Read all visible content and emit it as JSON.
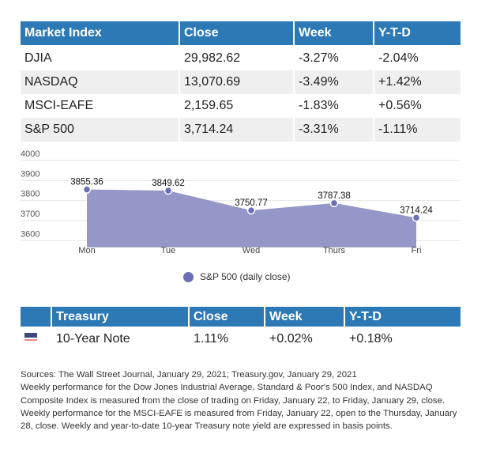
{
  "market_table": {
    "headers": [
      "Market Index",
      "Close",
      "Week",
      "Y-T-D"
    ],
    "rows": [
      [
        "DJIA",
        "29,982.62",
        "-3.27%",
        "-2.04%"
      ],
      [
        "NASDAQ",
        "13,070.69",
        "-3.49%",
        "+1.42%"
      ],
      [
        "MSCI-EAFE",
        "2,159.65",
        "-1.83%",
        "+0.56%"
      ],
      [
        "S&P 500",
        "3,714.24",
        "-3.31%",
        "-1.11%"
      ]
    ]
  },
  "chart_data": {
    "type": "area",
    "categories": [
      "Mon",
      "Tue",
      "Wed",
      "Thurs",
      "Fri"
    ],
    "series": [
      {
        "name": "S&P 500 (daily close)",
        "values": [
          3855.36,
          3849.62,
          3750.77,
          3787.38,
          3714.24
        ],
        "labels": [
          "3855.36",
          "3849.62",
          "3750.77",
          "3787.38",
          "3714.24"
        ]
      }
    ],
    "yticks": [
      "4000",
      "3900",
      "3800",
      "3700",
      "3600"
    ],
    "ylim": [
      3570,
      4000
    ],
    "grid": true,
    "legend": "bottom-center",
    "colors": {
      "fill": "#9497c7",
      "point": "#6b6fb5"
    }
  },
  "treasury_table": {
    "headers": [
      "",
      "Treasury",
      "Close",
      "Week",
      "Y-T-D"
    ],
    "row": {
      "flag": "us-flag-icon",
      "name": "10-Year Note",
      "close": "1.11%",
      "week": "+0.02%",
      "ytd": "+0.18%"
    }
  },
  "footnote": {
    "lines": [
      "Sources: The Wall Street Journal, January 29, 2021; Treasury.gov, January 29, 2021",
      "Weekly performance for the Dow Jones Industrial Average, Standard & Poor's 500 Index, and NASDAQ",
      "Composite Index is measured from the close of trading on Friday, January 22, to Friday, January 29, close.",
      "Weekly performance for the MSCI-EAFE is measured from Friday, January 22, open to the Thursday, January",
      "28, close. Weekly and year-to-date 10-year Treasury note yield are expressed in basis points."
    ]
  }
}
